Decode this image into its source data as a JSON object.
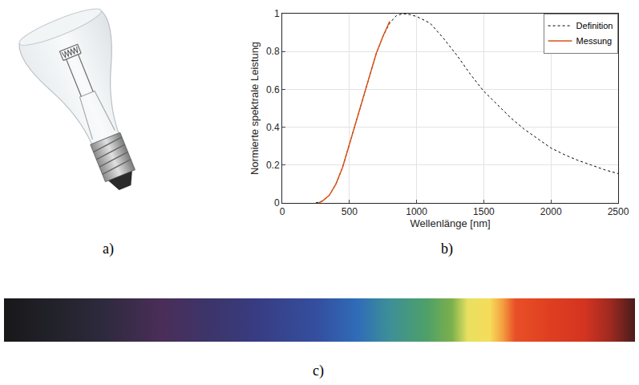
{
  "panel_labels": [
    "a)",
    "b)",
    "c)"
  ],
  "chart_data": {
    "type": "line",
    "x_label": "Wellenlänge [nm]",
    "y_label": "Normierte spektrale Leistung",
    "xlim": [
      0,
      2500
    ],
    "xticks": [
      0,
      500,
      1000,
      1500,
      2000,
      2500
    ],
    "ylim": [
      0,
      1
    ],
    "yticks": [
      0,
      0.2,
      0.4,
      0.6,
      0.8,
      1
    ],
    "grid": true,
    "legend": "upper right",
    "series": [
      {
        "name": "Definition",
        "color": "#000000",
        "line_style": "dash",
        "x": [
          250,
          300,
          350,
          400,
          450,
          500,
          550,
          600,
          650,
          700,
          750,
          800,
          850,
          900,
          950,
          1000,
          1100,
          1200,
          1300,
          1400,
          1500,
          1600,
          1700,
          1800,
          1900,
          2000,
          2100,
          2200,
          2300,
          2400,
          2500
        ],
        "values": [
          0,
          0.01,
          0.04,
          0.1,
          0.19,
          0.31,
          0.44,
          0.56,
          0.68,
          0.79,
          0.88,
          0.95,
          0.99,
          1,
          0.995,
          0.985,
          0.95,
          0.87,
          0.78,
          0.68,
          0.59,
          0.52,
          0.45,
          0.39,
          0.34,
          0.29,
          0.255,
          0.225,
          0.2,
          0.175,
          0.155
        ]
      },
      {
        "name": "Messung",
        "color": "#d95319",
        "line_style": "solid",
        "x": [
          270,
          300,
          350,
          400,
          450,
          500,
          550,
          600,
          650,
          700,
          750,
          800
        ],
        "values": [
          0,
          0.01,
          0.04,
          0.1,
          0.19,
          0.31,
          0.44,
          0.56,
          0.68,
          0.79,
          0.88,
          0.96
        ]
      }
    ]
  }
}
